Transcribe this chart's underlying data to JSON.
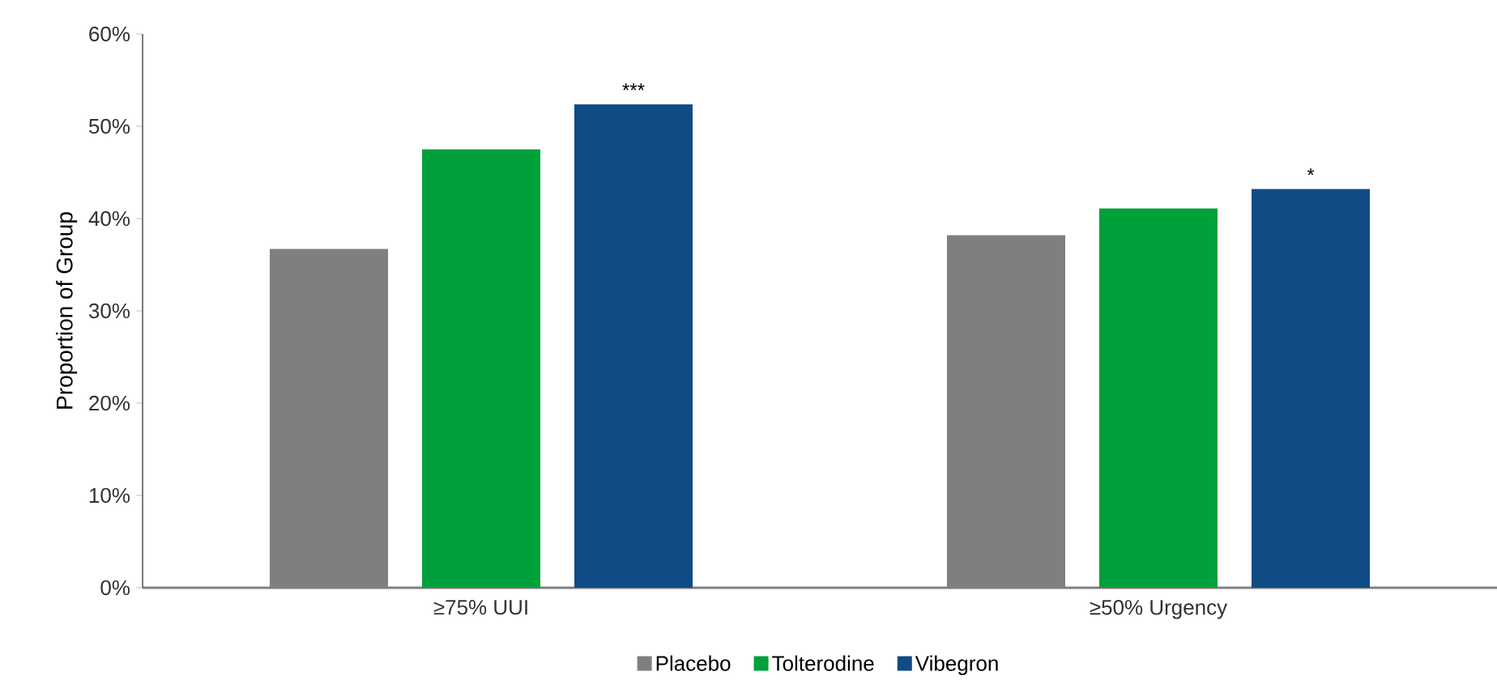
{
  "chart_data": {
    "type": "bar",
    "ylabel": "Proportion of Group",
    "categories": [
      "≥75% UUI",
      "≥50% Urgency"
    ],
    "series": [
      {
        "name": "Placebo",
        "color": "#7f7f7f",
        "values": [
          36.7,
          38.2
        ]
      },
      {
        "name": "Tolterodine",
        "color": "#00a03a",
        "values": [
          47.5,
          41.1
        ]
      },
      {
        "name": "Vibegron",
        "color": "#104b85",
        "values": [
          52.4,
          43.2
        ]
      }
    ],
    "ylim": [
      0,
      60
    ],
    "yticks": [
      {
        "value": 0,
        "label": "0%"
      },
      {
        "value": 10,
        "label": "10%"
      },
      {
        "value": 20,
        "label": "20%"
      },
      {
        "value": 30,
        "label": "30%"
      },
      {
        "value": 40,
        "label": "40%"
      },
      {
        "value": 50,
        "label": "50%"
      },
      {
        "value": 60,
        "label": "60%"
      }
    ],
    "annotations": [
      "***",
      "*"
    ],
    "legend": "bottom",
    "grid": false
  }
}
